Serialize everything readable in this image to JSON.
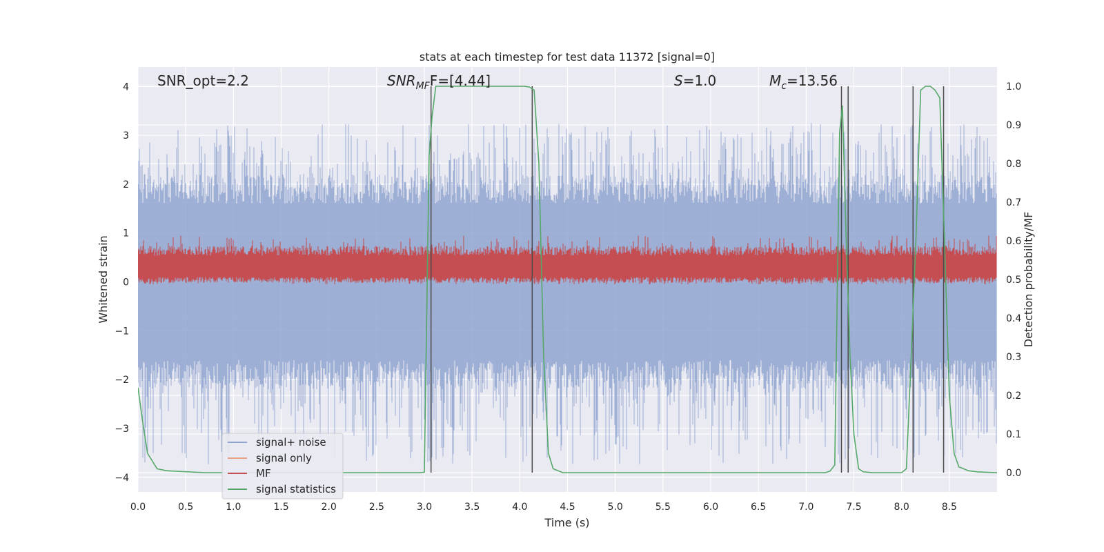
{
  "chart_data": {
    "type": "line",
    "title": "stats at each timestep for test data 11372 [signal=0]",
    "xlabel": "Time (s)",
    "ylabel_left": "Whitened strain",
    "ylabel_right": "Detection probability/MF",
    "xlim": [
      0,
      9.0
    ],
    "ylim_left": [
      -4.3,
      4.4
    ],
    "ylim_right": [
      -0.05,
      1.05
    ],
    "x_ticks": [
      "0.0",
      "0.5",
      "1.0",
      "1.5",
      "2.0",
      "2.5",
      "3.0",
      "3.5",
      "4.0",
      "4.5",
      "5.0",
      "5.5",
      "6.0",
      "6.5",
      "7.0",
      "7.5",
      "8.0",
      "8.5"
    ],
    "y_ticks_left": [
      "−4",
      "−3",
      "−2",
      "−1",
      "0",
      "1",
      "2",
      "3",
      "4"
    ],
    "y_ticks_right": [
      "0.0",
      "0.1",
      "0.2",
      "0.3",
      "0.4",
      "0.5",
      "0.6",
      "0.7",
      "0.8",
      "0.9",
      "1.0"
    ],
    "grid": true,
    "annotations": {
      "snr_opt": "SNR_opt=2.2",
      "snr_mf_base": "SNR",
      "snr_mf_sub": "MF",
      "snr_mf_rest": "F=[4.44]",
      "s_sym": "S",
      "s_rest": "=1.0",
      "mc_base": "M",
      "mc_sub": "c",
      "mc_rest": "=13.56"
    },
    "legend": {
      "placement": "lower-left",
      "entries": [
        "signal+ noise",
        "signal only",
        "MF",
        "signal statistics"
      ]
    },
    "colors": {
      "background": "#eaeaf2",
      "grid": "#ffffff",
      "noise": "#8fa5cf",
      "signal_only": "#e8a183",
      "mf": "#c44e52",
      "stats": "#55a868",
      "vlines": "#4a4a4a"
    },
    "series": [
      {
        "name": "signal statistics",
        "axis": "right",
        "x": [
          0.0,
          0.05,
          0.1,
          0.15,
          0.2,
          0.3,
          0.45,
          0.7,
          1.5,
          2.5,
          2.95,
          3.0,
          3.05,
          3.08,
          3.12,
          3.2,
          3.5,
          4.0,
          4.05,
          4.1,
          4.15,
          4.2,
          4.25,
          4.3,
          4.35,
          4.45,
          5.0,
          6.0,
          7.0,
          7.2,
          7.25,
          7.3,
          7.35,
          7.38,
          7.42,
          7.46,
          7.5,
          7.55,
          7.6,
          7.7,
          8.0,
          8.05,
          8.1,
          8.15,
          8.2,
          8.25,
          8.3,
          8.35,
          8.4,
          8.45,
          8.5,
          8.55,
          8.6,
          8.7,
          8.8,
          9.0
        ],
        "y": [
          0.22,
          0.13,
          0.05,
          0.03,
          0.01,
          0.005,
          0.003,
          0.0,
          0.0,
          0.0,
          0.0,
          0.001,
          0.82,
          0.92,
          1.0,
          1.0,
          1.0,
          1.0,
          1.0,
          0.998,
          0.99,
          0.8,
          0.3,
          0.05,
          0.01,
          0.0,
          0.0,
          0.0,
          0.0,
          0.0,
          0.004,
          0.02,
          0.88,
          0.95,
          0.6,
          0.3,
          0.1,
          0.01,
          0.002,
          0.0,
          0.0,
          0.01,
          0.3,
          0.6,
          0.99,
          1.0,
          1.0,
          0.99,
          0.97,
          0.6,
          0.2,
          0.05,
          0.015,
          0.005,
          0.002,
          0.0
        ]
      },
      {
        "name": "MF",
        "axis": "left",
        "band": [
          -0.05,
          0.95
        ],
        "typical": [
          0.1,
          0.6
        ]
      },
      {
        "name": "signal+ noise",
        "axis": "left",
        "band": [
          -3.75,
          3.25
        ],
        "typical": [
          -1.6,
          1.6
        ]
      },
      {
        "name": "signal only",
        "axis": "left",
        "values": []
      }
    ],
    "vlines": [
      3.07,
      4.13,
      7.37,
      7.44,
      8.12,
      8.44
    ],
    "vlines_range": [
      0.0,
      1.0
    ]
  }
}
